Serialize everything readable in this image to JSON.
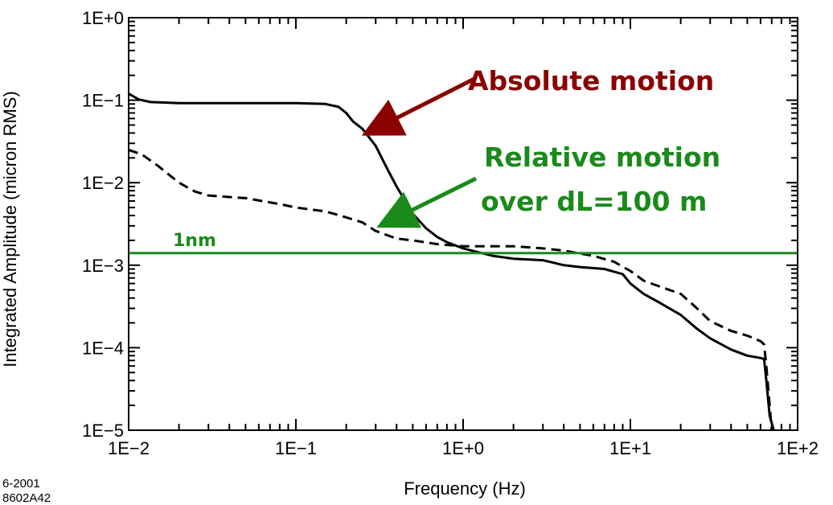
{
  "stamp": {
    "line1": "6-2001",
    "line2": "8602A42"
  },
  "chart_data": {
    "type": "line",
    "title": "",
    "xlabel": "Frequency  (Hz)",
    "ylabel": "Integrated Amplitude  (micron RMS)",
    "xscale": "log",
    "yscale": "log",
    "xlim": [
      0.01,
      100
    ],
    "ylim": [
      1e-05,
      1
    ],
    "x_tick_labels": [
      "1E−2",
      "1E−1",
      "1E+0",
      "1E+1",
      "1E+2"
    ],
    "y_tick_labels": [
      "1E+0",
      "1E−1",
      "1E−2",
      "1E−3",
      "1E−4",
      "1E−5"
    ],
    "grid": false,
    "series": [
      {
        "style": "solid",
        "color": "#000000",
        "points": [
          [
            0.01,
            0.12
          ],
          [
            0.0115,
            0.102
          ],
          [
            0.0135,
            0.095
          ],
          [
            0.02,
            0.092
          ],
          [
            0.05,
            0.092
          ],
          [
            0.1,
            0.092
          ],
          [
            0.15,
            0.09
          ],
          [
            0.18,
            0.083
          ],
          [
            0.2,
            0.07
          ],
          [
            0.22,
            0.055
          ],
          [
            0.25,
            0.045
          ],
          [
            0.3,
            0.028
          ],
          [
            0.35,
            0.015
          ],
          [
            0.4,
            0.009
          ],
          [
            0.5,
            0.0042
          ],
          [
            0.6,
            0.0028
          ],
          [
            0.7,
            0.0022
          ],
          [
            0.8,
            0.0019
          ],
          [
            1.0,
            0.0016
          ],
          [
            1.5,
            0.0013
          ],
          [
            2.0,
            0.0012
          ],
          [
            3.0,
            0.00115
          ],
          [
            4.0,
            0.001
          ],
          [
            5.0,
            0.00095
          ],
          [
            7.0,
            0.0009
          ],
          [
            9.0,
            0.00078
          ],
          [
            10.0,
            0.0006
          ],
          [
            12.0,
            0.00045
          ],
          [
            15.0,
            0.00035
          ],
          [
            20.0,
            0.00025
          ],
          [
            25.0,
            0.00017
          ],
          [
            30.0,
            0.00013
          ],
          [
            40.0,
            9.5e-05
          ],
          [
            50.0,
            8e-05
          ],
          [
            60.0,
            7.5e-05
          ],
          [
            63.0,
            7.3e-05
          ],
          [
            65.0,
            4e-05
          ],
          [
            68.0,
            1.5e-05
          ],
          [
            72.0,
            1e-05
          ]
        ]
      },
      {
        "style": "dashed",
        "color": "#000000",
        "points": [
          [
            0.01,
            0.025
          ],
          [
            0.012,
            0.022
          ],
          [
            0.015,
            0.016
          ],
          [
            0.02,
            0.01
          ],
          [
            0.025,
            0.0078
          ],
          [
            0.03,
            0.007
          ],
          [
            0.05,
            0.0065
          ],
          [
            0.08,
            0.0055
          ],
          [
            0.1,
            0.005
          ],
          [
            0.15,
            0.0045
          ],
          [
            0.2,
            0.0038
          ],
          [
            0.25,
            0.0033
          ],
          [
            0.3,
            0.0026
          ],
          [
            0.4,
            0.0021
          ],
          [
            0.5,
            0.002
          ],
          [
            0.7,
            0.0018
          ],
          [
            1.0,
            0.0017
          ],
          [
            2.0,
            0.0017
          ],
          [
            3.0,
            0.0016
          ],
          [
            4.0,
            0.0015
          ],
          [
            6.0,
            0.0013
          ],
          [
            8.0,
            0.0011
          ],
          [
            10.0,
            0.00085
          ],
          [
            12.0,
            0.00065
          ],
          [
            15.0,
            0.00055
          ],
          [
            20.0,
            0.00045
          ],
          [
            25.0,
            0.0003
          ],
          [
            30.0,
            0.00021
          ],
          [
            40.0,
            0.00016
          ],
          [
            50.0,
            0.00014
          ],
          [
            60.0,
            0.00012
          ],
          [
            63.0,
            0.00011
          ],
          [
            65.0,
            6e-05
          ],
          [
            68.0,
            2e-05
          ],
          [
            70.0,
            1e-05
          ]
        ]
      }
    ],
    "reference_lines": [
      {
        "y": 0.0014,
        "color": "#1a8a1a",
        "label": "1nm"
      }
    ],
    "annotations": [
      {
        "text": "Absolute motion",
        "color": "#8b0000",
        "arrow_to": [
          0.25,
          0.045
        ]
      },
      {
        "lines": [
          "Relative motion",
          "over dL=100 m"
        ],
        "color": "#1a8a1a",
        "arrow_to": [
          0.3,
          0.0033
        ]
      }
    ]
  }
}
